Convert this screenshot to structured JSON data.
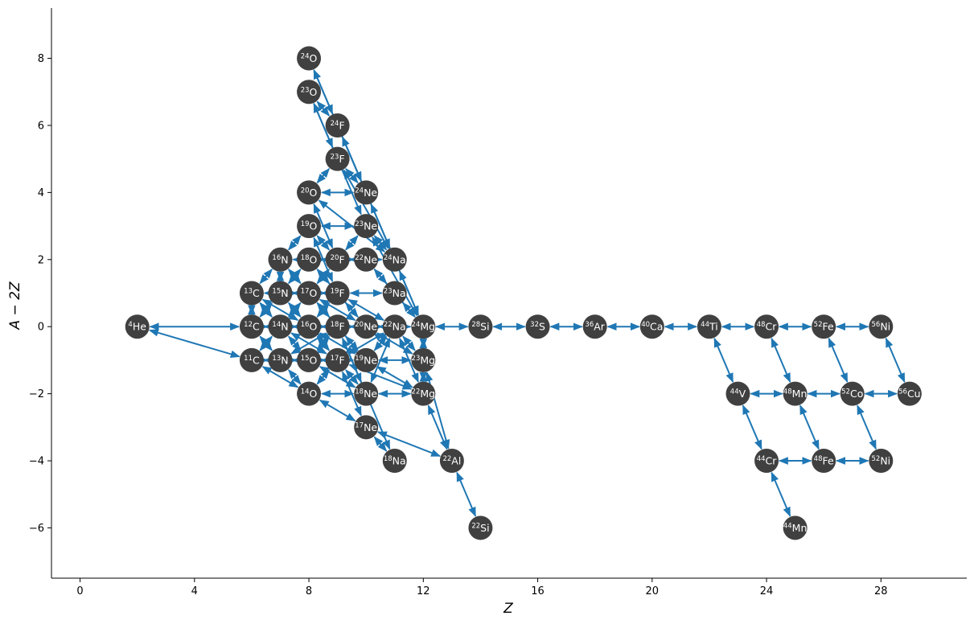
{
  "chart_data": {
    "type": "network",
    "xlabel": "Z",
    "ylabel": "A − 2Z",
    "xlim": [
      -1,
      31
    ],
    "ylim": [
      -7.5,
      9.5
    ],
    "xticks": [
      0,
      4,
      8,
      12,
      16,
      20,
      24,
      28
    ],
    "yticks": [
      -6,
      -4,
      -2,
      0,
      2,
      4,
      6,
      8
    ],
    "grid": false,
    "colors": {
      "node": "#404040",
      "edge": "#1f77b4",
      "label": "#ffffff"
    },
    "nodes": [
      {
        "id": "he4",
        "mass": "4",
        "el": "He",
        "z": 2,
        "nz": 0
      },
      {
        "id": "c11",
        "mass": "11",
        "el": "C",
        "z": 6,
        "nz": -1
      },
      {
        "id": "c12",
        "mass": "12",
        "el": "C",
        "z": 6,
        "nz": 0
      },
      {
        "id": "c13",
        "mass": "13",
        "el": "C",
        "z": 6,
        "nz": 1
      },
      {
        "id": "n13",
        "mass": "13",
        "el": "N",
        "z": 7,
        "nz": -1
      },
      {
        "id": "n14",
        "mass": "14",
        "el": "N",
        "z": 7,
        "nz": 0
      },
      {
        "id": "n15",
        "mass": "15",
        "el": "N",
        "z": 7,
        "nz": 1
      },
      {
        "id": "n16",
        "mass": "16",
        "el": "N",
        "z": 7,
        "nz": 2
      },
      {
        "id": "o14",
        "mass": "14",
        "el": "O",
        "z": 8,
        "nz": -2
      },
      {
        "id": "o15",
        "mass": "15",
        "el": "O",
        "z": 8,
        "nz": -1
      },
      {
        "id": "o16",
        "mass": "16",
        "el": "O",
        "z": 8,
        "nz": 0
      },
      {
        "id": "o17",
        "mass": "17",
        "el": "O",
        "z": 8,
        "nz": 1
      },
      {
        "id": "o18",
        "mass": "18",
        "el": "O",
        "z": 8,
        "nz": 2
      },
      {
        "id": "o19",
        "mass": "19",
        "el": "O",
        "z": 8,
        "nz": 3
      },
      {
        "id": "o20",
        "mass": "20",
        "el": "O",
        "z": 8,
        "nz": 4
      },
      {
        "id": "o23",
        "mass": "23",
        "el": "O",
        "z": 8,
        "nz": 7
      },
      {
        "id": "o24",
        "mass": "24",
        "el": "O",
        "z": 8,
        "nz": 8
      },
      {
        "id": "f17",
        "mass": "17",
        "el": "F",
        "z": 9,
        "nz": -1
      },
      {
        "id": "f18",
        "mass": "18",
        "el": "F",
        "z": 9,
        "nz": 0
      },
      {
        "id": "f19",
        "mass": "19",
        "el": "F",
        "z": 9,
        "nz": 1
      },
      {
        "id": "f20",
        "mass": "20",
        "el": "F",
        "z": 9,
        "nz": 2
      },
      {
        "id": "f23",
        "mass": "23",
        "el": "F",
        "z": 9,
        "nz": 5
      },
      {
        "id": "f24",
        "mass": "24",
        "el": "F",
        "z": 9,
        "nz": 6
      },
      {
        "id": "ne17",
        "mass": "17",
        "el": "Ne",
        "z": 10,
        "nz": -3
      },
      {
        "id": "ne18",
        "mass": "18",
        "el": "Ne",
        "z": 10,
        "nz": -2
      },
      {
        "id": "ne19",
        "mass": "19",
        "el": "Ne",
        "z": 10,
        "nz": -1
      },
      {
        "id": "ne20",
        "mass": "20",
        "el": "Ne",
        "z": 10,
        "nz": 0
      },
      {
        "id": "ne22",
        "mass": "22",
        "el": "Ne",
        "z": 10,
        "nz": 2
      },
      {
        "id": "ne23",
        "mass": "23",
        "el": "Ne",
        "z": 10,
        "nz": 3
      },
      {
        "id": "ne24",
        "mass": "24",
        "el": "Ne",
        "z": 10,
        "nz": 4
      },
      {
        "id": "na18",
        "mass": "18",
        "el": "Na",
        "z": 11,
        "nz": -4
      },
      {
        "id": "na22",
        "mass": "22",
        "el": "Na",
        "z": 11,
        "nz": 0
      },
      {
        "id": "na23",
        "mass": "23",
        "el": "Na",
        "z": 11,
        "nz": 1
      },
      {
        "id": "na24",
        "mass": "24",
        "el": "Na",
        "z": 11,
        "nz": 2
      },
      {
        "id": "mg22",
        "mass": "22",
        "el": "Mg",
        "z": 12,
        "nz": -2
      },
      {
        "id": "mg23",
        "mass": "23",
        "el": "Mg",
        "z": 12,
        "nz": -1
      },
      {
        "id": "mg24",
        "mass": "24",
        "el": "Mg",
        "z": 12,
        "nz": 0
      },
      {
        "id": "al22",
        "mass": "22",
        "el": "Al",
        "z": 13,
        "nz": -4
      },
      {
        "id": "si22",
        "mass": "22",
        "el": "Si",
        "z": 14,
        "nz": -6
      },
      {
        "id": "si28",
        "mass": "28",
        "el": "Si",
        "z": 14,
        "nz": 0
      },
      {
        "id": "s32",
        "mass": "32",
        "el": "S",
        "z": 16,
        "nz": 0
      },
      {
        "id": "ar36",
        "mass": "36",
        "el": "Ar",
        "z": 18,
        "nz": 0
      },
      {
        "id": "ca40",
        "mass": "40",
        "el": "Ca",
        "z": 20,
        "nz": 0
      },
      {
        "id": "ti44",
        "mass": "44",
        "el": "Ti",
        "z": 22,
        "nz": 0
      },
      {
        "id": "v44",
        "mass": "44",
        "el": "V",
        "z": 23,
        "nz": -2
      },
      {
        "id": "cr44",
        "mass": "44",
        "el": "Cr",
        "z": 24,
        "nz": -4
      },
      {
        "id": "cr48",
        "mass": "48",
        "el": "Cr",
        "z": 24,
        "nz": 0
      },
      {
        "id": "mn44",
        "mass": "44",
        "el": "Mn",
        "z": 25,
        "nz": -6
      },
      {
        "id": "mn48",
        "mass": "48",
        "el": "Mn",
        "z": 25,
        "nz": -2
      },
      {
        "id": "fe48",
        "mass": "48",
        "el": "Fe",
        "z": 26,
        "nz": -4
      },
      {
        "id": "fe52",
        "mass": "52",
        "el": "Fe",
        "z": 26,
        "nz": 0
      },
      {
        "id": "co52",
        "mass": "52",
        "el": "Co",
        "z": 27,
        "nz": -2
      },
      {
        "id": "ni52",
        "mass": "52",
        "el": "Ni",
        "z": 28,
        "nz": -4
      },
      {
        "id": "ni56",
        "mass": "56",
        "el": "Ni",
        "z": 28,
        "nz": 0
      },
      {
        "id": "cu56",
        "mass": "56",
        "el": "Cu",
        "z": 29,
        "nz": -2
      }
    ],
    "edges": [
      [
        "he4",
        "c12"
      ],
      [
        "he4",
        "c11"
      ],
      [
        "c12",
        "n13"
      ],
      [
        "c12",
        "o16"
      ],
      [
        "c12",
        "n14"
      ],
      [
        "c12",
        "c13"
      ],
      [
        "c13",
        "n14"
      ],
      [
        "c13",
        "o17"
      ],
      [
        "c13",
        "n16"
      ],
      [
        "c13",
        "o16"
      ],
      [
        "c11",
        "n13"
      ],
      [
        "c11",
        "o14"
      ],
      [
        "c11",
        "o15"
      ],
      [
        "c11",
        "n14"
      ],
      [
        "n13",
        "o14"
      ],
      [
        "n13",
        "f17"
      ],
      [
        "n13",
        "o15"
      ],
      [
        "n13",
        "f18"
      ],
      [
        "n14",
        "o15"
      ],
      [
        "n14",
        "f18"
      ],
      [
        "n14",
        "o17"
      ],
      [
        "n14",
        "f17"
      ],
      [
        "n14",
        "o16"
      ],
      [
        "n15",
        "o16"
      ],
      [
        "n15",
        "f19"
      ],
      [
        "n15",
        "c12"
      ],
      [
        "n15",
        "o18"
      ],
      [
        "n15",
        "o17"
      ],
      [
        "n15",
        "n16"
      ],
      [
        "n16",
        "o17"
      ],
      [
        "n16",
        "f20"
      ],
      [
        "n16",
        "o19"
      ],
      [
        "o14",
        "f17"
      ],
      [
        "o14",
        "ne18"
      ],
      [
        "o14",
        "ne17"
      ],
      [
        "o15",
        "f18"
      ],
      [
        "o15",
        "ne19"
      ],
      [
        "o15",
        "ne18"
      ],
      [
        "o15",
        "f17"
      ],
      [
        "o16",
        "f17"
      ],
      [
        "o16",
        "ne20"
      ],
      [
        "o16",
        "f19"
      ],
      [
        "o16",
        "f18"
      ],
      [
        "o16",
        "ne19"
      ],
      [
        "o17",
        "f18"
      ],
      [
        "o17",
        "ne20"
      ],
      [
        "o17",
        "f19"
      ],
      [
        "o17",
        "f20"
      ],
      [
        "o17",
        "ne19"
      ],
      [
        "o18",
        "f19"
      ],
      [
        "o18",
        "ne22"
      ],
      [
        "o18",
        "f20"
      ],
      [
        "o18",
        "ne20"
      ],
      [
        "o19",
        "f20"
      ],
      [
        "o19",
        "ne23"
      ],
      [
        "o19",
        "f19"
      ],
      [
        "o20",
        "f20"
      ],
      [
        "o20",
        "ne24"
      ],
      [
        "o20",
        "f23"
      ],
      [
        "o20",
        "na24"
      ],
      [
        "o23",
        "f24"
      ],
      [
        "o23",
        "f23"
      ],
      [
        "o24",
        "f24"
      ],
      [
        "o24",
        "ne24"
      ],
      [
        "o23",
        "ne23"
      ],
      [
        "f17",
        "ne18"
      ],
      [
        "f17",
        "na22"
      ],
      [
        "f17",
        "ne17"
      ],
      [
        "f17",
        "mg22"
      ],
      [
        "f18",
        "ne19"
      ],
      [
        "f18",
        "na22"
      ],
      [
        "f18",
        "ne18"
      ],
      [
        "f18",
        "na18"
      ],
      [
        "f19",
        "ne20"
      ],
      [
        "f19",
        "na23"
      ],
      [
        "f19",
        "na22"
      ],
      [
        "f20",
        "ne22"
      ],
      [
        "f20",
        "na24"
      ],
      [
        "f20",
        "ne23"
      ],
      [
        "f23",
        "ne24"
      ],
      [
        "f23",
        "na24"
      ],
      [
        "f24",
        "ne24"
      ],
      [
        "f24",
        "na24"
      ],
      [
        "ne17",
        "na18"
      ],
      [
        "ne17",
        "al22"
      ],
      [
        "ne18",
        "na22"
      ],
      [
        "ne18",
        "mg22"
      ],
      [
        "ne19",
        "na22"
      ],
      [
        "ne19",
        "mg23"
      ],
      [
        "ne19",
        "mg22"
      ],
      [
        "ne20",
        "na22"
      ],
      [
        "ne20",
        "mg24"
      ],
      [
        "ne20",
        "mg23"
      ],
      [
        "ne22",
        "na23"
      ],
      [
        "ne22",
        "mg24"
      ],
      [
        "ne23",
        "na24"
      ],
      [
        "ne23",
        "mg24"
      ],
      [
        "ne24",
        "mg24"
      ],
      [
        "na24",
        "mg24"
      ],
      [
        "na22",
        "mg23"
      ],
      [
        "na23",
        "mg24"
      ],
      [
        "na22",
        "mg22"
      ],
      [
        "mg22",
        "al22"
      ],
      [
        "mg23",
        "al22"
      ],
      [
        "mg24",
        "mg23"
      ],
      [
        "mg23",
        "mg22"
      ],
      [
        "al22",
        "si22"
      ],
      [
        "mg24",
        "si28"
      ],
      [
        "si28",
        "s32"
      ],
      [
        "s32",
        "ar36"
      ],
      [
        "ar36",
        "ca40"
      ],
      [
        "ca40",
        "ti44"
      ],
      [
        "ti44",
        "cr48"
      ],
      [
        "cr48",
        "fe52"
      ],
      [
        "fe52",
        "ni56"
      ],
      [
        "ti44",
        "v44"
      ],
      [
        "v44",
        "cr44"
      ],
      [
        "v44",
        "mn48"
      ],
      [
        "cr44",
        "mn44"
      ],
      [
        "cr44",
        "fe48"
      ],
      [
        "cr48",
        "mn48"
      ],
      [
        "mn48",
        "fe48"
      ],
      [
        "mn48",
        "co52"
      ],
      [
        "fe52",
        "co52"
      ],
      [
        "co52",
        "ni52"
      ],
      [
        "co52",
        "cu56"
      ],
      [
        "fe48",
        "ni52"
      ],
      [
        "ni56",
        "cu56"
      ]
    ]
  }
}
